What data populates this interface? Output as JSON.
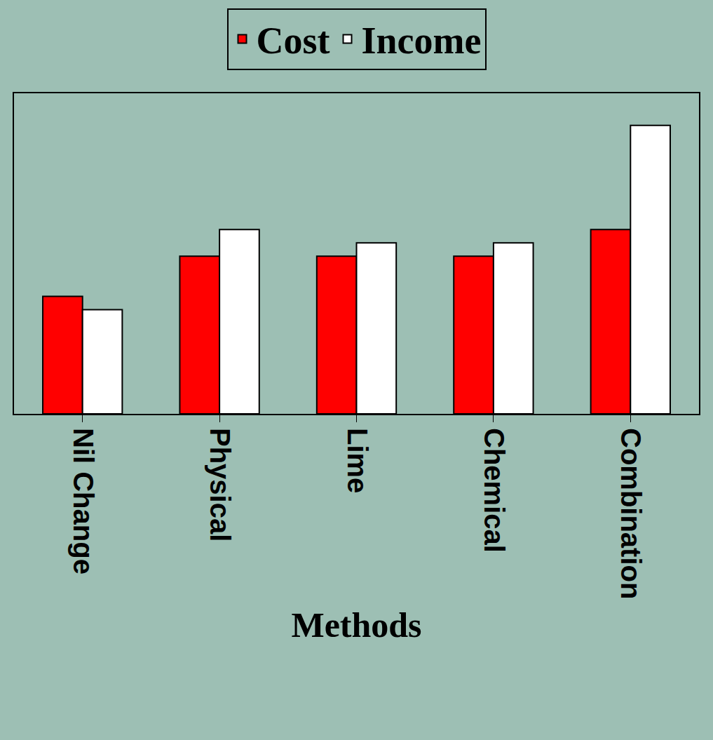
{
  "chart_data": {
    "type": "bar",
    "x_label": "Methods",
    "categories": [
      "Nil Change",
      "Physical",
      "Lime",
      "Chemical",
      "Combination"
    ],
    "series": [
      {
        "name": "Cost",
        "color": "#ff0000",
        "values": [
          4.4,
          5.9,
          5.9,
          5.9,
          6.9
        ]
      },
      {
        "name": "Income",
        "color": "#ffffff",
        "values": [
          3.9,
          6.9,
          6.4,
          6.4,
          10.8
        ]
      }
    ],
    "ylim": [
      0,
      12
    ],
    "grid": false,
    "legend": "top",
    "tick_labels": "x"
  }
}
